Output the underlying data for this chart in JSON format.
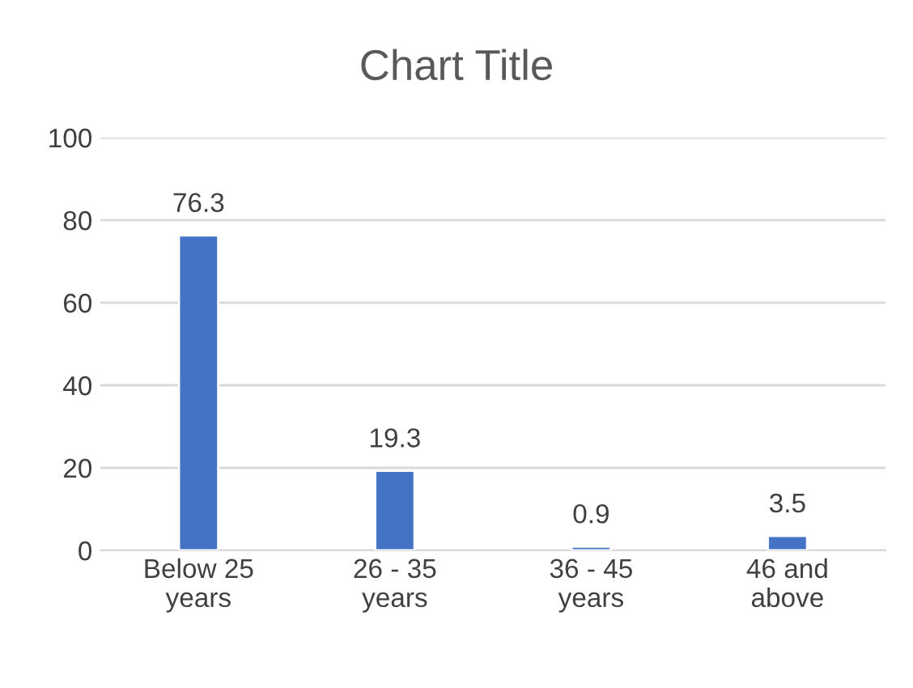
{
  "chart_data": {
    "type": "bar",
    "title": "Chart Title",
    "categories": [
      "Below 25\nyears",
      "26 - 35\nyears",
      "36 - 45\nyears",
      "46 and\nabove"
    ],
    "values": [
      76.3,
      19.3,
      0.9,
      3.5
    ],
    "color": "#4472c4",
    "ylim": [
      0,
      100
    ],
    "yticks": [
      0,
      20,
      40,
      60,
      80,
      100
    ],
    "grid": "y",
    "data_labels": true,
    "legend": false
  }
}
